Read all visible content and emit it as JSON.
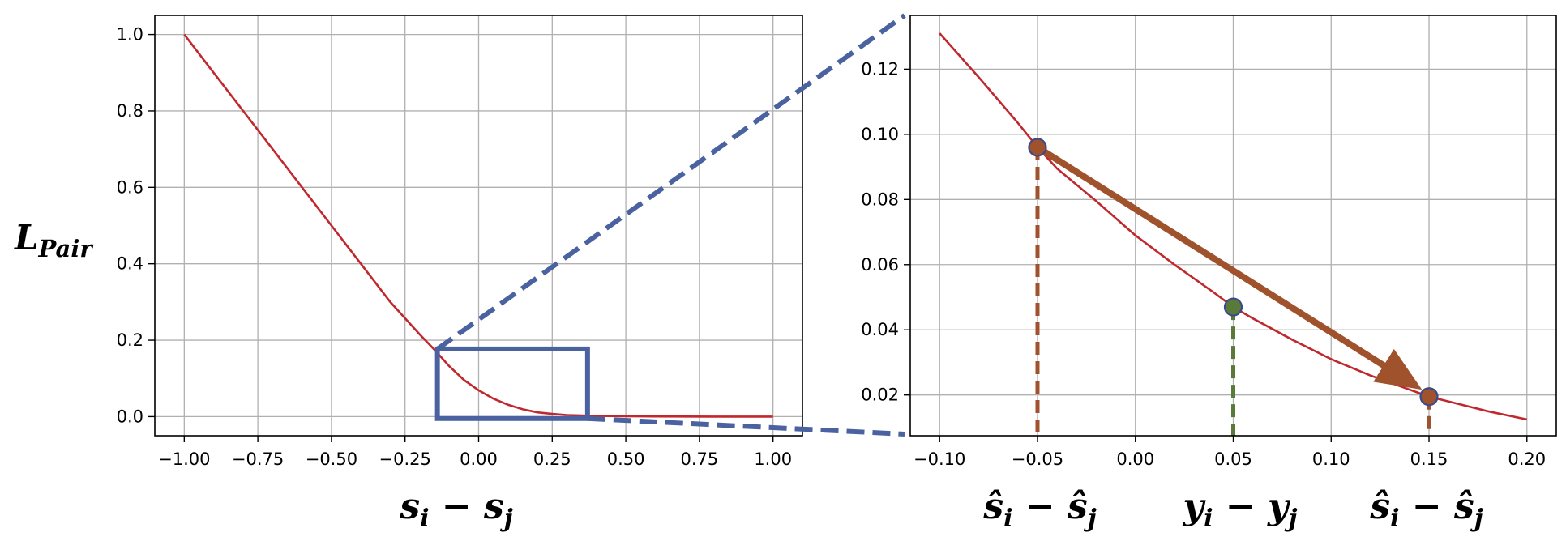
{
  "chart_data": [
    {
      "type": "line",
      "xlabel": "s_i − s_j",
      "ylabel": "L_Pair",
      "xlim": [
        -1.1,
        1.1
      ],
      "ylim": [
        -0.05,
        1.05
      ],
      "xticks": [
        -1.0,
        -0.75,
        -0.5,
        -0.25,
        0.0,
        0.25,
        0.5,
        0.75,
        1.0
      ],
      "xtick_labels": [
        "−1.00",
        "−0.75",
        "−0.50",
        "−0.25",
        "0.00",
        "0.25",
        "0.50",
        "0.75",
        "1.00"
      ],
      "yticks": [
        0.0,
        0.2,
        0.4,
        0.6,
        0.8,
        1.0
      ],
      "ytick_labels": [
        "0.0",
        "0.2",
        "0.4",
        "0.6",
        "0.8",
        "1.0"
      ],
      "grid": true,
      "curve_color": "#c0282d",
      "series": [
        {
          "x": [
            -1.0,
            -0.9,
            -0.8,
            -0.7,
            -0.6,
            -0.5,
            -0.4,
            -0.3,
            -0.2,
            -0.15,
            -0.1,
            -0.05,
            0.0,
            0.05,
            0.1,
            0.15,
            0.2,
            0.25,
            0.3,
            0.4,
            0.5,
            0.6,
            0.7,
            0.8,
            0.9,
            1.0
          ],
          "y": [
            1.0,
            0.9,
            0.8,
            0.7,
            0.6,
            0.5,
            0.4,
            0.3,
            0.215,
            0.175,
            0.132,
            0.096,
            0.069,
            0.047,
            0.031,
            0.019,
            0.011,
            0.007,
            0.004,
            0.002,
            0.001,
            0.0005,
            0.0002,
            0.0001,
            0.0001,
            0.0
          ]
        }
      ],
      "zoom_box": {
        "x": [
          -0.14,
          0.37
        ],
        "y": [
          -0.005,
          0.177
        ],
        "color": "#4a62a0"
      }
    },
    {
      "type": "line",
      "xlim": [
        -0.115,
        0.215
      ],
      "ylim": [
        0.0075,
        0.1365
      ],
      "xticks": [
        -0.1,
        -0.05,
        0.0,
        0.05,
        0.1,
        0.15,
        0.2
      ],
      "xtick_labels": [
        "−0.10",
        "−0.05",
        "0.00",
        "0.05",
        "0.10",
        "0.15",
        "0.20"
      ],
      "yticks": [
        0.02,
        0.04,
        0.06,
        0.08,
        0.1,
        0.12
      ],
      "ytick_labels": [
        "0.02",
        "0.04",
        "0.06",
        "0.08",
        "0.10",
        "0.12"
      ],
      "grid": true,
      "curve_color": "#c0282d",
      "series": [
        {
          "x": [
            -0.1,
            -0.08,
            -0.06,
            -0.05,
            -0.04,
            -0.02,
            0.0,
            0.02,
            0.04,
            0.05,
            0.06,
            0.08,
            0.1,
            0.12,
            0.15,
            0.18,
            0.2
          ],
          "y": [
            0.131,
            0.1175,
            0.1035,
            0.096,
            0.0895,
            0.0795,
            0.069,
            0.06,
            0.0515,
            0.047,
            0.0435,
            0.037,
            0.031,
            0.026,
            0.0195,
            0.015,
            0.0125
          ]
        }
      ],
      "points": [
        {
          "x": -0.05,
          "y": 0.096,
          "fill": "#a0522d",
          "stroke": "#3a4a8a"
        },
        {
          "x": 0.05,
          "y": 0.047,
          "fill": "#5a7a3a",
          "stroke": "#3a4a8a"
        },
        {
          "x": 0.15,
          "y": 0.0195,
          "fill": "#a0522d",
          "stroke": "#3a4a8a"
        }
      ],
      "drop_lines": [
        {
          "x": -0.05,
          "y": 0.096,
          "color": "#a0522d"
        },
        {
          "x": 0.05,
          "y": 0.047,
          "color": "#5a7a3a"
        },
        {
          "x": 0.15,
          "y": 0.0195,
          "color": "#a0522d"
        }
      ],
      "arrow": {
        "from": [
          -0.05,
          0.096
        ],
        "to": [
          0.148,
          0.0215
        ],
        "color": "#a0522d"
      },
      "xlabels_under": [
        {
          "x": -0.05,
          "text": "ŝ_i − ŝ_j"
        },
        {
          "x": 0.05,
          "text": "y_i − y_j"
        },
        {
          "x": 0.15,
          "text": "ŝ_i − ŝ_j"
        }
      ]
    }
  ],
  "labels": {
    "ylabel_main": "L",
    "ylabel_sub": "Pair",
    "left_xlabel": {
      "a": "s",
      "a_sub": "i",
      "op": " − ",
      "b": "s",
      "b_sub": "j"
    },
    "r1": {
      "a": "ŝ",
      "a_sub": "i",
      "op": " − ",
      "b": "ŝ",
      "b_sub": "j"
    },
    "r2": {
      "a": "y",
      "a_sub": "i",
      "op": " − ",
      "b": "y",
      "b_sub": "j"
    },
    "r3": {
      "a": "ŝ",
      "a_sub": "i",
      "op": " − ",
      "b": "ŝ",
      "b_sub": "j"
    }
  }
}
